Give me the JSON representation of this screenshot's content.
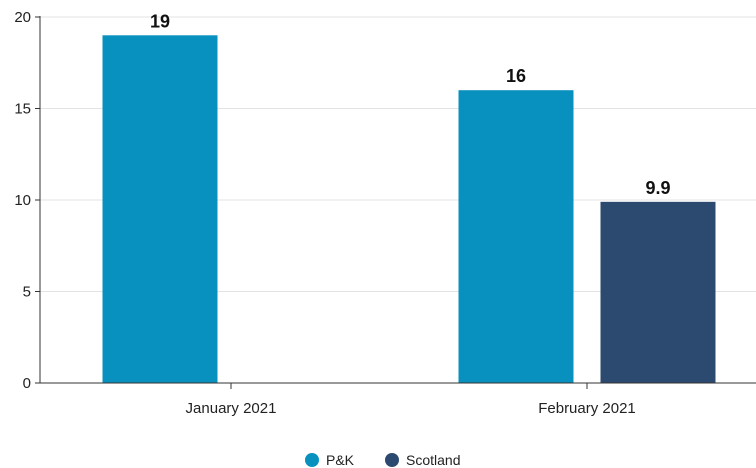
{
  "chart_data": {
    "type": "bar",
    "categories": [
      "January 2021",
      "February 2021"
    ],
    "series": [
      {
        "name": "P&K",
        "values": [
          19,
          16
        ],
        "color": "#0891BE"
      },
      {
        "name": "Scotland",
        "values": [
          null,
          9.9
        ],
        "color": "#2C4A6F"
      }
    ],
    "value_labels": [
      [
        "19",
        "16"
      ],
      [
        null,
        "9.9"
      ]
    ],
    "title": "",
    "xlabel": "",
    "ylabel": "",
    "ylim": [
      0,
      20
    ],
    "yticks": [
      0,
      5,
      10,
      15,
      20
    ],
    "grid": true,
    "legend_position": "bottom-center"
  }
}
